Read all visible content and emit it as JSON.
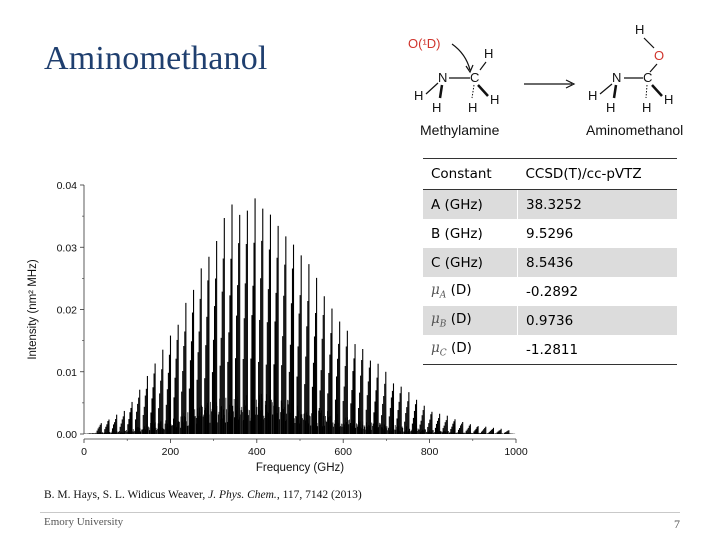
{
  "slide": {
    "title": "Aminomethanol",
    "citation_authors": "B. M. Hays, S. L. Widicus Weaver, ",
    "citation_journal": "J. Phys. Chem.",
    "citation_ref": ", 117, 7142 (2013)",
    "footer_left": "Emory University",
    "page_number": "7"
  },
  "scheme": {
    "reactant_label": "Methylamine",
    "product_label": "Aminomethanol",
    "oxygen_label": "O(¹D)",
    "colors": {
      "oxygen": "#d0342c",
      "bond": "#111111"
    }
  },
  "table": {
    "headers": [
      "Constant",
      "CCSD(T)/cc-pVTZ"
    ],
    "rows": [
      {
        "label": "A (GHz)",
        "value": "38.3252"
      },
      {
        "label": "B (GHz)",
        "value": "9.5296"
      },
      {
        "label": "C (GHz)",
        "value": "8.5436"
      },
      {
        "label_symbol": "μ",
        "label_sub": "A",
        "label_unit": "(D)",
        "value": "-0.2892"
      },
      {
        "label_symbol": "μ",
        "label_sub": "B",
        "label_unit": "(D)",
        "value": "0.9736"
      },
      {
        "label_symbol": "μ",
        "label_sub": "C",
        "label_unit": "(D)",
        "value": "-1.2811"
      }
    ]
  },
  "chart_data": {
    "type": "bar",
    "xlabel": "Frequency (GHz)",
    "ylabel": "Intensity (nm² MHz)",
    "xlim": [
      0,
      1000
    ],
    "ylim": [
      0,
      0.04
    ],
    "xticks": [
      "0",
      "200",
      "400",
      "600",
      "800",
      "1000"
    ],
    "yticks": [
      "0.00",
      "0.01",
      "0.02",
      "0.03",
      "0.04"
    ],
    "grid": false,
    "envelope": {
      "description_points_x": [
        0,
        100,
        200,
        300,
        360,
        400,
        450,
        500,
        600,
        700,
        800,
        900,
        1000
      ],
      "description_points_y": [
        0.0005,
        0.004,
        0.016,
        0.032,
        0.039,
        0.04,
        0.037,
        0.03,
        0.018,
        0.01,
        0.004,
        0.0015,
        0.0005
      ]
    },
    "peak_spacing_ghz": 17.8,
    "peak_color": "#000000"
  }
}
